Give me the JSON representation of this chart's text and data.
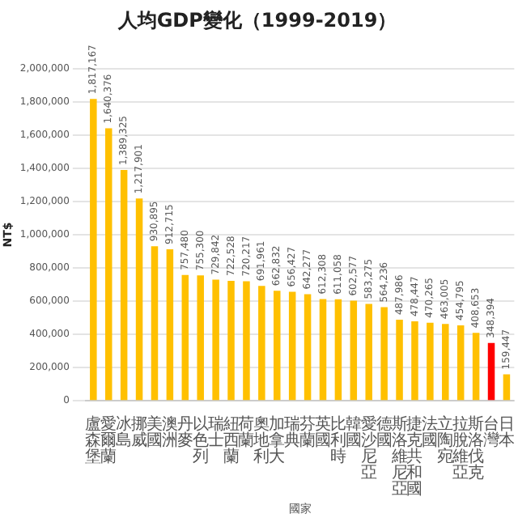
{
  "chart_data": {
    "type": "bar",
    "title": "人均GDP變化（1999-2019）",
    "xlabel": "國家",
    "ylabel": "NT$",
    "categories": [
      "盧森堡",
      "愛爾蘭",
      "冰島",
      "挪威",
      "美國",
      "澳洲",
      "丹麥",
      "以色列",
      "瑞士",
      "紐西蘭",
      "荷蘭",
      "奧地利",
      "加拿大",
      "瑞典",
      "芬蘭",
      "英國",
      "比利時",
      "韓國",
      "愛沙尼亞",
      "德國",
      "斯洛維尼亞",
      "捷克共和國",
      "法國",
      "立陶宛",
      "拉脫維亞",
      "斯洛伐克",
      "台灣",
      "日本"
    ],
    "values": [
      1817167,
      1640376,
      1389325,
      1217901,
      930895,
      912715,
      757480,
      755300,
      729842,
      722528,
      720217,
      691961,
      662832,
      656427,
      642277,
      612308,
      611058,
      602577,
      583275,
      564236,
      487986,
      478447,
      470265,
      463005,
      454795,
      408653,
      348394,
      159447
    ],
    "value_labels": [
      "1,817,167",
      "1,640,376",
      "1,389,325",
      "1,217,901",
      "930,895",
      "912,715",
      "757,480",
      "755,300",
      "729,842",
      "722,528",
      "720,217",
      "691,961",
      "662,832",
      "656,427",
      "642,277",
      "612,308",
      "611,058",
      "602,577",
      "583,275",
      "564,236",
      "487,986",
      "478,447",
      "470,265",
      "463,005",
      "454,795",
      "408,653",
      "348,394",
      "159,447"
    ],
    "colors": [
      "#ffc000",
      "#ffc000",
      "#ffc000",
      "#ffc000",
      "#ffc000",
      "#ffc000",
      "#ffc000",
      "#ffc000",
      "#ffc000",
      "#ffc000",
      "#ffc000",
      "#ffc000",
      "#ffc000",
      "#ffc000",
      "#ffc000",
      "#ffc000",
      "#ffc000",
      "#ffc000",
      "#ffc000",
      "#ffc000",
      "#ffc000",
      "#ffc000",
      "#ffc000",
      "#ffc000",
      "#ffc000",
      "#ffc000",
      "#ff0000",
      "#ffc000"
    ],
    "ylim": [
      0,
      2000000
    ],
    "yticks": [
      {
        "value": 0,
        "label": "0"
      },
      {
        "value": 200000,
        "label": "200,000"
      },
      {
        "value": 400000,
        "label": "400,000"
      },
      {
        "value": 600000,
        "label": "600,000"
      },
      {
        "value": 800000,
        "label": "800,000"
      },
      {
        "value": 1000000,
        "label": "1,000,000"
      },
      {
        "value": 1200000,
        "label": "1,200,000"
      },
      {
        "value": 1400000,
        "label": "1,400,000"
      },
      {
        "value": 1600000,
        "label": "1,600,000"
      },
      {
        "value": 1800000,
        "label": "1,800,000"
      },
      {
        "value": 2000000,
        "label": "2,000,000"
      }
    ],
    "grid": "y",
    "legend": false
  }
}
